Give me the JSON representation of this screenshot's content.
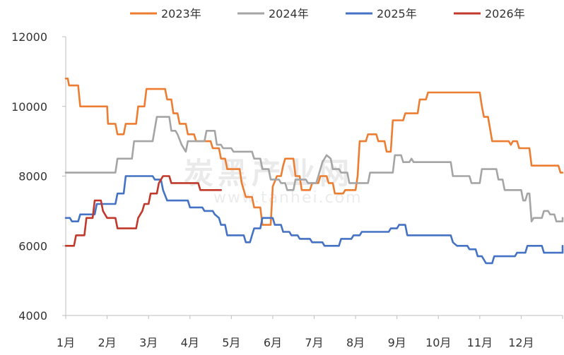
{
  "chart_data": {
    "type": "line",
    "title": "",
    "xlabel": "",
    "ylabel": "",
    "ylim": [
      4000,
      12000
    ],
    "yticks": [
      4000,
      6000,
      8000,
      10000,
      12000
    ],
    "x_unit": "month",
    "xlim": [
      1,
      13
    ],
    "categories": [
      "1月",
      "2月",
      "3月",
      "4月",
      "5月",
      "6月",
      "7月",
      "8月",
      "9月",
      "10月",
      "11月",
      "12月"
    ],
    "legend_position": "top",
    "grid": false,
    "series": [
      {
        "name": "2023年",
        "color": "#ED7D31",
        "points": [
          [
            1.0,
            10800
          ],
          [
            1.05,
            10800
          ],
          [
            1.08,
            10600
          ],
          [
            1.3,
            10600
          ],
          [
            1.35,
            10000
          ],
          [
            2.0,
            10000
          ],
          [
            2.02,
            9500
          ],
          [
            2.2,
            9500
          ],
          [
            2.25,
            9200
          ],
          [
            2.4,
            9200
          ],
          [
            2.45,
            9500
          ],
          [
            2.7,
            9500
          ],
          [
            2.75,
            10000
          ],
          [
            2.9,
            10000
          ],
          [
            2.95,
            10500
          ],
          [
            3.4,
            10500
          ],
          [
            3.45,
            10200
          ],
          [
            3.55,
            10200
          ],
          [
            3.6,
            9800
          ],
          [
            3.7,
            9800
          ],
          [
            3.75,
            9500
          ],
          [
            3.9,
            9500
          ],
          [
            3.95,
            9200
          ],
          [
            4.1,
            9200
          ],
          [
            4.15,
            9000
          ],
          [
            4.5,
            9000
          ],
          [
            4.55,
            8800
          ],
          [
            4.7,
            8800
          ],
          [
            4.75,
            8500
          ],
          [
            4.85,
            8500
          ],
          [
            4.9,
            8200
          ],
          [
            5.2,
            8200
          ],
          [
            5.25,
            7800
          ],
          [
            5.35,
            7400
          ],
          [
            5.5,
            7400
          ],
          [
            5.55,
            7100
          ],
          [
            5.7,
            7100
          ],
          [
            5.75,
            6600
          ],
          [
            5.95,
            6600
          ],
          [
            6.0,
            7700
          ],
          [
            6.1,
            8000
          ],
          [
            6.2,
            8000
          ],
          [
            6.25,
            8300
          ],
          [
            6.3,
            8500
          ],
          [
            6.5,
            8500
          ],
          [
            6.55,
            8000
          ],
          [
            6.65,
            8000
          ],
          [
            6.7,
            7600
          ],
          [
            6.9,
            7600
          ],
          [
            6.95,
            7800
          ],
          [
            7.1,
            7800
          ],
          [
            7.15,
            8000
          ],
          [
            7.3,
            8000
          ],
          [
            7.35,
            7800
          ],
          [
            7.45,
            7800
          ],
          [
            7.5,
            7500
          ],
          [
            7.7,
            7500
          ],
          [
            7.75,
            7600
          ],
          [
            8.0,
            7600
          ],
          [
            8.05,
            8000
          ],
          [
            8.1,
            9000
          ],
          [
            8.25,
            9000
          ],
          [
            8.3,
            9200
          ],
          [
            8.5,
            9200
          ],
          [
            8.55,
            9000
          ],
          [
            8.7,
            9000
          ],
          [
            8.75,
            8700
          ],
          [
            8.85,
            8700
          ],
          [
            8.9,
            9600
          ],
          [
            9.15,
            9600
          ],
          [
            9.2,
            9800
          ],
          [
            9.5,
            9800
          ],
          [
            9.55,
            10200
          ],
          [
            9.7,
            10200
          ],
          [
            9.75,
            10400
          ],
          [
            11.0,
            10400
          ],
          [
            11.05,
            10000
          ],
          [
            11.1,
            9700
          ],
          [
            11.2,
            9700
          ],
          [
            11.3,
            9000
          ],
          [
            11.7,
            9000
          ],
          [
            11.75,
            8900
          ],
          [
            11.8,
            9000
          ],
          [
            11.9,
            9000
          ],
          [
            11.95,
            8800
          ],
          [
            12.2,
            8800
          ],
          [
            12.25,
            8300
          ],
          [
            12.9,
            8300
          ],
          [
            12.95,
            8100
          ],
          [
            13.0,
            8100
          ]
        ]
      },
      {
        "name": "2024年",
        "color": "#A5A5A5",
        "points": [
          [
            1.0,
            8100
          ],
          [
            2.2,
            8100
          ],
          [
            2.25,
            8500
          ],
          [
            2.6,
            8500
          ],
          [
            2.65,
            9000
          ],
          [
            3.1,
            9000
          ],
          [
            3.2,
            9700
          ],
          [
            3.5,
            9700
          ],
          [
            3.55,
            9300
          ],
          [
            3.65,
            9300
          ],
          [
            3.7,
            9200
          ],
          [
            3.8,
            8900
          ],
          [
            3.9,
            8700
          ],
          [
            3.95,
            9000
          ],
          [
            4.35,
            9000
          ],
          [
            4.4,
            9300
          ],
          [
            4.6,
            9300
          ],
          [
            4.65,
            8900
          ],
          [
            4.75,
            8900
          ],
          [
            4.8,
            8800
          ],
          [
            5.0,
            8800
          ],
          [
            5.05,
            8700
          ],
          [
            5.5,
            8700
          ],
          [
            5.55,
            8500
          ],
          [
            5.7,
            8500
          ],
          [
            5.75,
            8200
          ],
          [
            5.9,
            8200
          ],
          [
            5.95,
            7900
          ],
          [
            6.15,
            7900
          ],
          [
            6.2,
            7800
          ],
          [
            6.3,
            7800
          ],
          [
            6.35,
            7600
          ],
          [
            6.5,
            7600
          ],
          [
            6.55,
            7900
          ],
          [
            6.8,
            7900
          ],
          [
            6.85,
            7800
          ],
          [
            7.05,
            7800
          ],
          [
            7.1,
            8000
          ],
          [
            7.2,
            8400
          ],
          [
            7.3,
            8600
          ],
          [
            7.4,
            8500
          ],
          [
            7.45,
            8200
          ],
          [
            7.6,
            8200
          ],
          [
            7.65,
            8100
          ],
          [
            7.8,
            8100
          ],
          [
            7.85,
            7800
          ],
          [
            8.3,
            7800
          ],
          [
            8.35,
            8100
          ],
          [
            8.9,
            8100
          ],
          [
            8.95,
            8600
          ],
          [
            9.1,
            8600
          ],
          [
            9.15,
            8400
          ],
          [
            9.3,
            8400
          ],
          [
            9.35,
            8500
          ],
          [
            9.4,
            8400
          ],
          [
            10.3,
            8400
          ],
          [
            10.35,
            8000
          ],
          [
            10.5,
            8000
          ],
          [
            10.55,
            8000
          ],
          [
            10.75,
            8000
          ],
          [
            10.8,
            7800
          ],
          [
            11.0,
            7800
          ],
          [
            11.05,
            8200
          ],
          [
            11.4,
            8200
          ],
          [
            11.45,
            7900
          ],
          [
            11.55,
            7900
          ],
          [
            11.6,
            7600
          ],
          [
            12.0,
            7600
          ],
          [
            12.05,
            7300
          ],
          [
            12.1,
            7300
          ],
          [
            12.15,
            7500
          ],
          [
            12.2,
            7500
          ],
          [
            12.25,
            6700
          ],
          [
            12.3,
            6800
          ],
          [
            12.5,
            6800
          ],
          [
            12.55,
            7000
          ],
          [
            12.65,
            7000
          ],
          [
            12.7,
            6900
          ],
          [
            12.8,
            6900
          ],
          [
            12.85,
            6700
          ],
          [
            13.0,
            6700
          ],
          [
            13.0,
            6800
          ]
        ]
      },
      {
        "name": "2025年",
        "color": "#4472C4",
        "points": [
          [
            1.0,
            6800
          ],
          [
            1.1,
            6800
          ],
          [
            1.15,
            6700
          ],
          [
            1.3,
            6700
          ],
          [
            1.35,
            6900
          ],
          [
            1.7,
            6900
          ],
          [
            1.75,
            7200
          ],
          [
            2.2,
            7200
          ],
          [
            2.25,
            7500
          ],
          [
            2.4,
            7500
          ],
          [
            2.45,
            8000
          ],
          [
            3.1,
            8000
          ],
          [
            3.15,
            7900
          ],
          [
            3.3,
            7900
          ],
          [
            3.35,
            7600
          ],
          [
            3.45,
            7300
          ],
          [
            3.95,
            7300
          ],
          [
            4.0,
            7100
          ],
          [
            4.3,
            7100
          ],
          [
            4.35,
            7000
          ],
          [
            4.55,
            7000
          ],
          [
            4.6,
            6900
          ],
          [
            4.7,
            6800
          ],
          [
            4.75,
            6600
          ],
          [
            4.85,
            6600
          ],
          [
            4.9,
            6300
          ],
          [
            5.3,
            6300
          ],
          [
            5.35,
            6100
          ],
          [
            5.45,
            6100
          ],
          [
            5.5,
            6300
          ],
          [
            5.55,
            6500
          ],
          [
            5.7,
            6500
          ],
          [
            5.75,
            6800
          ],
          [
            6.0,
            6800
          ],
          [
            6.05,
            6600
          ],
          [
            6.2,
            6600
          ],
          [
            6.25,
            6400
          ],
          [
            6.4,
            6400
          ],
          [
            6.45,
            6300
          ],
          [
            6.6,
            6300
          ],
          [
            6.65,
            6200
          ],
          [
            6.9,
            6200
          ],
          [
            6.95,
            6100
          ],
          [
            7.2,
            6100
          ],
          [
            7.25,
            6000
          ],
          [
            7.6,
            6000
          ],
          [
            7.65,
            6200
          ],
          [
            7.9,
            6200
          ],
          [
            7.95,
            6300
          ],
          [
            8.1,
            6300
          ],
          [
            8.15,
            6400
          ],
          [
            8.8,
            6400
          ],
          [
            8.85,
            6500
          ],
          [
            9.0,
            6500
          ],
          [
            9.05,
            6600
          ],
          [
            9.2,
            6600
          ],
          [
            9.25,
            6300
          ],
          [
            10.3,
            6300
          ],
          [
            10.35,
            6100
          ],
          [
            10.45,
            6000
          ],
          [
            10.7,
            6000
          ],
          [
            10.75,
            5900
          ],
          [
            10.9,
            5900
          ],
          [
            10.95,
            5700
          ],
          [
            11.05,
            5700
          ],
          [
            11.1,
            5600
          ],
          [
            11.15,
            5500
          ],
          [
            11.3,
            5500
          ],
          [
            11.35,
            5700
          ],
          [
            11.85,
            5700
          ],
          [
            11.9,
            5800
          ],
          [
            12.1,
            5800
          ],
          [
            12.15,
            6000
          ],
          [
            12.5,
            6000
          ],
          [
            12.55,
            5800
          ],
          [
            13.0,
            5800
          ],
          [
            13.0,
            6000
          ]
        ]
      },
      {
        "name": "2026年",
        "color": "#C0392B",
        "points": [
          [
            1.0,
            6000
          ],
          [
            1.2,
            6000
          ],
          [
            1.25,
            6300
          ],
          [
            1.45,
            6300
          ],
          [
            1.5,
            6800
          ],
          [
            1.65,
            6800
          ],
          [
            1.7,
            7300
          ],
          [
            1.85,
            7300
          ],
          [
            1.9,
            7000
          ],
          [
            2.0,
            6800
          ],
          [
            2.2,
            6800
          ],
          [
            2.25,
            6500
          ],
          [
            2.7,
            6500
          ],
          [
            2.75,
            6800
          ],
          [
            2.85,
            7000
          ],
          [
            2.9,
            7200
          ],
          [
            3.0,
            7200
          ],
          [
            3.05,
            7500
          ],
          [
            3.2,
            7500
          ],
          [
            3.25,
            7800
          ],
          [
            3.35,
            8000
          ],
          [
            3.5,
            8000
          ],
          [
            3.55,
            7800
          ],
          [
            4.2,
            7800
          ],
          [
            4.25,
            7600
          ],
          [
            4.75,
            7600
          ]
        ]
      }
    ]
  },
  "watermark": {
    "text": "炭黑产业网",
    "sub": "www.tanhei.com"
  }
}
